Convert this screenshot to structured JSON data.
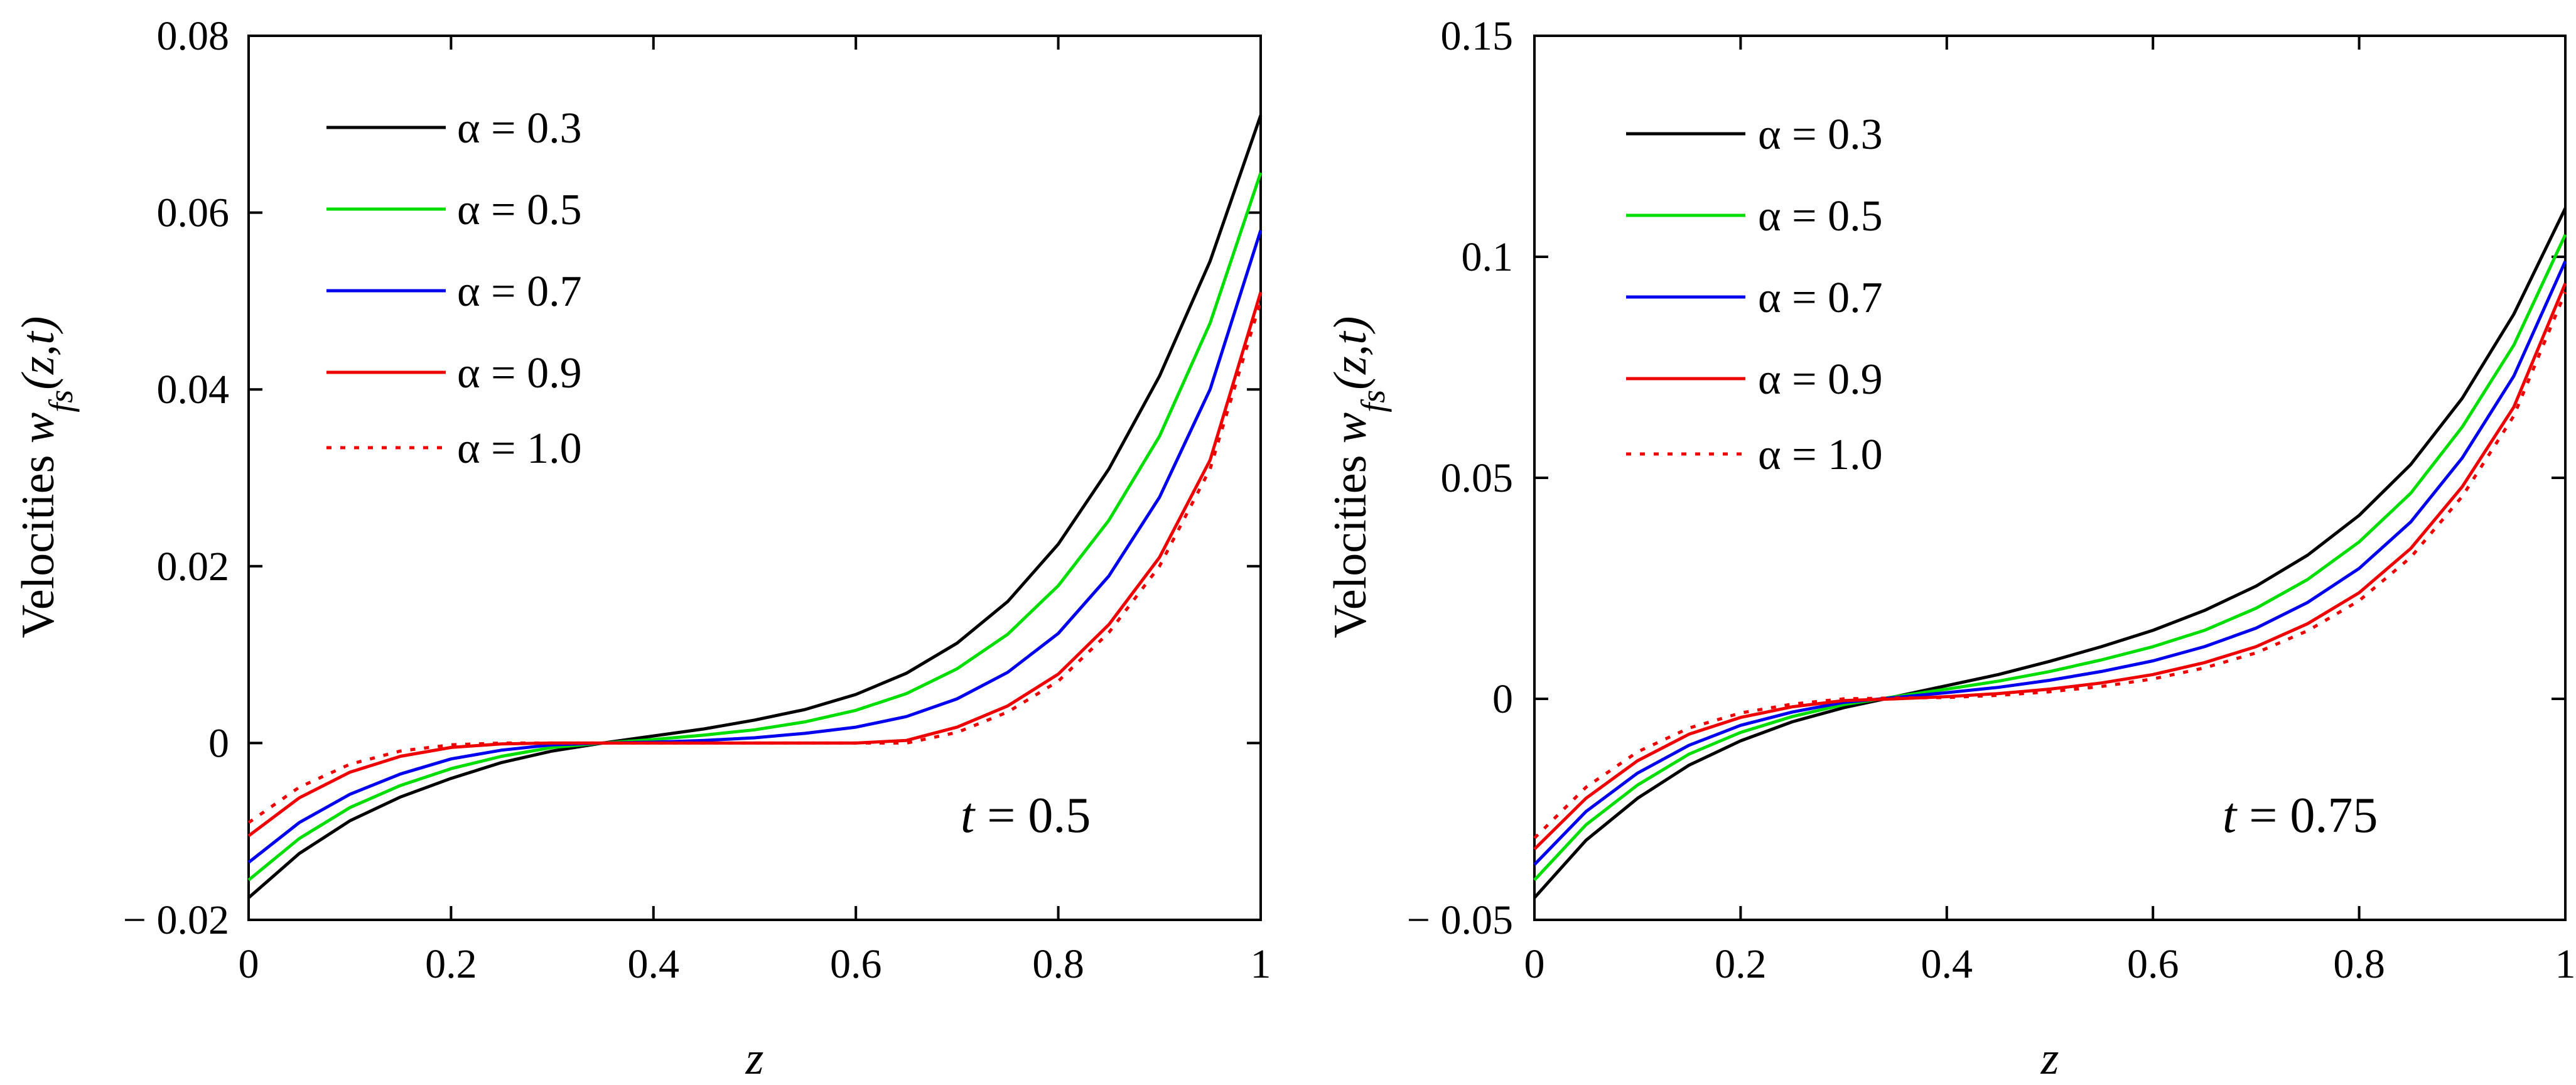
{
  "chart_data": [
    {
      "type": "line",
      "title": "",
      "xlabel": "z",
      "ylabel_prefix": "Velocities ",
      "ylabel_var": "w",
      "ylabel_sub": "fs",
      "ylabel_args": "(z,t)",
      "annotation_var": "t",
      "annotation_eq": " = ",
      "annotation_val": "0.5",
      "xlim": [
        0,
        1
      ],
      "ylim": [
        -0.02,
        0.08
      ],
      "xticks": [
        0,
        0.2,
        0.4,
        0.6,
        0.8,
        1
      ],
      "xtick_labels": [
        "0",
        "0.2",
        "0.4",
        "0.6",
        "0.8",
        "1"
      ],
      "yticks": [
        -0.02,
        0,
        0.02,
        0.04,
        0.06,
        0.08
      ],
      "ytick_labels": [
        "− 0.02",
        "0",
        "0.02",
        "0.04",
        "0.06",
        "0.08"
      ],
      "grid": false,
      "legend_position": "top-left",
      "x": [
        0,
        0.05,
        0.1,
        0.15,
        0.2,
        0.25,
        0.3,
        0.35,
        0.4,
        0.45,
        0.5,
        0.55,
        0.6,
        0.65,
        0.7,
        0.75,
        0.8,
        0.85,
        0.9,
        0.95,
        1.0
      ],
      "series": [
        {
          "name": "α = 0.3",
          "color": "#000000",
          "dash": "solid",
          "values": [
            -0.0175,
            -0.0125,
            -0.0088,
            -0.0061,
            -0.004,
            -0.0022,
            -0.0009,
            0.0,
            0.0008,
            0.0016,
            0.0026,
            0.0038,
            0.0055,
            0.0079,
            0.0113,
            0.016,
            0.0225,
            0.031,
            0.0415,
            0.0545,
            0.071
          ]
        },
        {
          "name": "α = 0.5",
          "color": "#00dd00",
          "dash": "solid",
          "values": [
            -0.0155,
            -0.0108,
            -0.0073,
            -0.0048,
            -0.0029,
            -0.0015,
            -0.0005,
            0.0,
            0.0004,
            0.0009,
            0.0015,
            0.0024,
            0.0037,
            0.0056,
            0.0084,
            0.0123,
            0.0178,
            0.0252,
            0.0347,
            0.0475,
            0.0645
          ]
        },
        {
          "name": "α = 0.7",
          "color": "#0000ee",
          "dash": "solid",
          "values": [
            -0.0135,
            -0.009,
            -0.0058,
            -0.0035,
            -0.0018,
            -0.0008,
            -0.0002,
            0.0,
            0.0001,
            0.0003,
            0.0006,
            0.0011,
            0.0018,
            0.003,
            0.005,
            0.008,
            0.0124,
            0.0189,
            0.0278,
            0.04,
            0.058
          ]
        },
        {
          "name": "α = 0.9",
          "color": "#ee0000",
          "dash": "solid",
          "values": [
            -0.0105,
            -0.0062,
            -0.0033,
            -0.0015,
            -0.0005,
            -0.0001,
            0.0,
            0.0,
            0.0,
            0.0,
            0.0,
            0.0,
            0.0,
            0.0003,
            0.0018,
            0.0042,
            0.0078,
            0.0134,
            0.021,
            0.032,
            0.051
          ]
        },
        {
          "name": "α = 1.0",
          "color": "#ee0000",
          "dash": "dotted",
          "values": [
            -0.009,
            -0.005,
            -0.0024,
            -0.0009,
            -0.0002,
            0.0,
            0.0,
            0.0,
            0.0,
            0.0,
            0.0,
            0.0,
            0.0,
            0.0,
            0.0012,
            0.0035,
            0.007,
            0.0125,
            0.02,
            0.031,
            0.05
          ]
        }
      ]
    },
    {
      "type": "line",
      "title": "",
      "xlabel": "z",
      "ylabel_prefix": "Velocities ",
      "ylabel_var": "w",
      "ylabel_sub": "fs",
      "ylabel_args": "(z,t)",
      "annotation_var": "t",
      "annotation_eq": " = ",
      "annotation_val": "0.75",
      "xlim": [
        0,
        1
      ],
      "ylim": [
        -0.05,
        0.15
      ],
      "xticks": [
        0,
        0.2,
        0.4,
        0.6,
        0.8,
        1
      ],
      "xtick_labels": [
        "0",
        "0.2",
        "0.4",
        "0.6",
        "0.8",
        "1"
      ],
      "yticks": [
        -0.05,
        0,
        0.05,
        0.1,
        0.15
      ],
      "ytick_labels": [
        "− 0.05",
        "0",
        "0.05",
        "0.1",
        "0.15"
      ],
      "grid": false,
      "legend_position": "top-left",
      "x": [
        0,
        0.05,
        0.1,
        0.15,
        0.2,
        0.25,
        0.3,
        0.35,
        0.4,
        0.45,
        0.5,
        0.55,
        0.6,
        0.65,
        0.7,
        0.75,
        0.8,
        0.85,
        0.9,
        0.95,
        1.0
      ],
      "series": [
        {
          "name": "α = 0.3",
          "color": "#000000",
          "dash": "solid",
          "values": [
            -0.045,
            -0.032,
            -0.0225,
            -0.015,
            -0.0095,
            -0.0052,
            -0.002,
            0.0005,
            0.003,
            0.0055,
            0.0085,
            0.0118,
            0.0155,
            0.02,
            0.0255,
            0.0325,
            0.0415,
            0.053,
            0.068,
            0.087,
            0.111
          ]
        },
        {
          "name": "α = 0.5",
          "color": "#00dd00",
          "dash": "solid",
          "values": [
            -0.041,
            -0.0285,
            -0.0195,
            -0.0125,
            -0.0076,
            -0.004,
            -0.0013,
            0.0005,
            0.0022,
            0.004,
            0.0062,
            0.0088,
            0.0118,
            0.0155,
            0.0205,
            0.027,
            0.0355,
            0.0465,
            0.0615,
            0.08,
            0.105
          ]
        },
        {
          "name": "α = 0.7",
          "color": "#0000ee",
          "dash": "solid",
          "values": [
            -0.0375,
            -0.0255,
            -0.0168,
            -0.0105,
            -0.006,
            -0.003,
            -0.0008,
            0.0003,
            0.0014,
            0.0026,
            0.0042,
            0.0062,
            0.0086,
            0.0118,
            0.016,
            0.0218,
            0.0295,
            0.04,
            0.0545,
            0.073,
            0.099
          ]
        },
        {
          "name": "α = 0.9",
          "color": "#ee0000",
          "dash": "solid",
          "values": [
            -0.034,
            -0.0225,
            -0.014,
            -0.008,
            -0.0042,
            -0.0018,
            -0.0004,
            0.0,
            0.0005,
            0.0012,
            0.0022,
            0.0036,
            0.0055,
            0.0082,
            0.0118,
            0.017,
            0.024,
            0.034,
            0.048,
            0.066,
            0.094
          ]
        },
        {
          "name": "α = 1.0",
          "color": "#ee0000",
          "dash": "dotted",
          "values": [
            -0.0315,
            -0.02,
            -0.012,
            -0.0066,
            -0.0032,
            -0.0012,
            0.0,
            0.0002,
            0.0003,
            0.0008,
            0.0016,
            0.0028,
            0.0045,
            0.007,
            0.0104,
            0.0154,
            0.0222,
            0.032,
            0.0458,
            0.064,
            0.092
          ]
        }
      ]
    }
  ]
}
